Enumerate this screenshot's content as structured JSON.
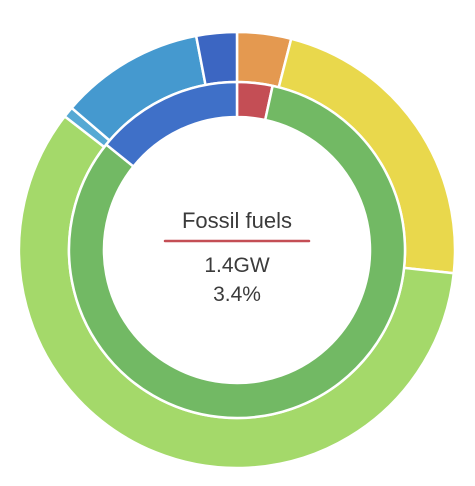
{
  "chart_data": {
    "type": "donut",
    "center": {
      "label": "Fossil fuels",
      "value": "1.4GW",
      "percent": "3.4%",
      "underline_color": "#c44e55"
    },
    "inner_ring": {
      "slices": [
        {
          "name": "Fossil fuels",
          "value": 3.4,
          "color": "#c44e55"
        },
        {
          "name": "",
          "value": 82.4,
          "color": "#72b964"
        },
        {
          "name": "",
          "value": 14.2,
          "color": "#3f70c8"
        }
      ]
    },
    "outer_ring": {
      "slices": [
        {
          "name": "",
          "value": 4.0,
          "color": "#e49950"
        },
        {
          "name": "",
          "value": 22.7,
          "color": "#e9d84c"
        },
        {
          "name": "",
          "value": 58.8,
          "color": "#a4d96a"
        },
        {
          "name": "",
          "value": 0.8,
          "color": "#56a9d4"
        },
        {
          "name": "",
          "value": 10.7,
          "color": "#4599cf"
        },
        {
          "name": "",
          "value": 3.0,
          "color": "#3c66c2"
        }
      ]
    }
  }
}
